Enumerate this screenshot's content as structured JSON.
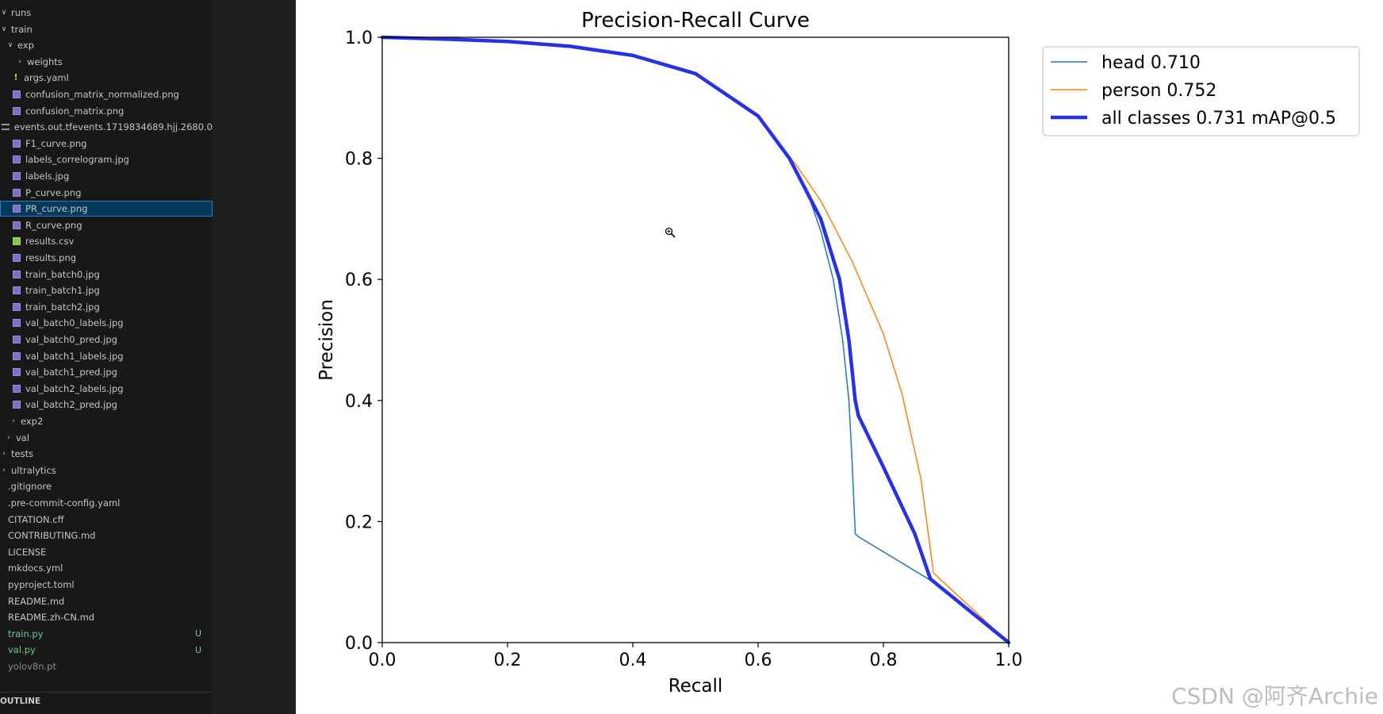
{
  "explorer": {
    "items": [
      {
        "label": "runs",
        "chev": "∨",
        "icon": "",
        "indent": 0,
        "state": ""
      },
      {
        "label": "train",
        "chev": "∨",
        "icon": "",
        "indent": 0,
        "state": ""
      },
      {
        "label": "exp",
        "chev": "∨",
        "icon": "",
        "indent": 8,
        "state": ""
      },
      {
        "label": "weights",
        "chev": "›",
        "icon": "",
        "indent": 20,
        "state": ""
      },
      {
        "label": "args.yaml",
        "chev": "",
        "icon": "yaml",
        "indent": 16,
        "state": ""
      },
      {
        "label": "confusion_matrix_normalized.png",
        "chev": "",
        "icon": "img",
        "indent": 16,
        "state": ""
      },
      {
        "label": "confusion_matrix.png",
        "chev": "",
        "icon": "img",
        "indent": 16,
        "state": ""
      },
      {
        "label": "events.out.tfevents.1719834689.hjj.2680.0",
        "chev": "",
        "icon": "txt",
        "indent": 16,
        "state": ""
      },
      {
        "label": "F1_curve.png",
        "chev": "",
        "icon": "img",
        "indent": 16,
        "state": ""
      },
      {
        "label": "labels_correlogram.jpg",
        "chev": "",
        "icon": "img",
        "indent": 16,
        "state": ""
      },
      {
        "label": "labels.jpg",
        "chev": "",
        "icon": "img",
        "indent": 16,
        "state": ""
      },
      {
        "label": "P_curve.png",
        "chev": "",
        "icon": "img",
        "indent": 16,
        "state": ""
      },
      {
        "label": "PR_curve.png",
        "chev": "",
        "icon": "img",
        "indent": 16,
        "state": "selected"
      },
      {
        "label": "R_curve.png",
        "chev": "",
        "icon": "img",
        "indent": 16,
        "state": ""
      },
      {
        "label": "results.csv",
        "chev": "",
        "icon": "csv",
        "indent": 16,
        "state": ""
      },
      {
        "label": "results.png",
        "chev": "",
        "icon": "img",
        "indent": 16,
        "state": ""
      },
      {
        "label": "train_batch0.jpg",
        "chev": "",
        "icon": "img",
        "indent": 16,
        "state": ""
      },
      {
        "label": "train_batch1.jpg",
        "chev": "",
        "icon": "img",
        "indent": 16,
        "state": ""
      },
      {
        "label": "train_batch2.jpg",
        "chev": "",
        "icon": "img",
        "indent": 16,
        "state": ""
      },
      {
        "label": "val_batch0_labels.jpg",
        "chev": "",
        "icon": "img",
        "indent": 16,
        "state": ""
      },
      {
        "label": "val_batch0_pred.jpg",
        "chev": "",
        "icon": "img",
        "indent": 16,
        "state": ""
      },
      {
        "label": "val_batch1_labels.jpg",
        "chev": "",
        "icon": "img",
        "indent": 16,
        "state": ""
      },
      {
        "label": "val_batch1_pred.jpg",
        "chev": "",
        "icon": "img",
        "indent": 16,
        "state": ""
      },
      {
        "label": "val_batch2_labels.jpg",
        "chev": "",
        "icon": "img",
        "indent": 16,
        "state": ""
      },
      {
        "label": "val_batch2_pred.jpg",
        "chev": "",
        "icon": "img",
        "indent": 16,
        "state": ""
      },
      {
        "label": "exp2",
        "chev": "›",
        "icon": "",
        "indent": 12,
        "state": ""
      },
      {
        "label": "val",
        "chev": "›",
        "icon": "",
        "indent": 6,
        "state": ""
      },
      {
        "label": "tests",
        "chev": "›",
        "icon": "",
        "indent": 0,
        "state": ""
      },
      {
        "label": "ultralytics",
        "chev": "›",
        "icon": "",
        "indent": 0,
        "state": ""
      },
      {
        "label": ".gitignore",
        "chev": "",
        "icon": "",
        "indent": 10,
        "state": ""
      },
      {
        "label": ".pre-commit-config.yaml",
        "chev": "",
        "icon": "",
        "indent": 10,
        "state": ""
      },
      {
        "label": "CITATION.cff",
        "chev": "",
        "icon": "",
        "indent": 10,
        "state": ""
      },
      {
        "label": "CONTRIBUTING.md",
        "chev": "",
        "icon": "",
        "indent": 10,
        "state": ""
      },
      {
        "label": "LICENSE",
        "chev": "",
        "icon": "",
        "indent": 10,
        "state": ""
      },
      {
        "label": "mkdocs.yml",
        "chev": "",
        "icon": "",
        "indent": 10,
        "state": ""
      },
      {
        "label": "pyproject.toml",
        "chev": "",
        "icon": "",
        "indent": 10,
        "state": ""
      },
      {
        "label": "README.md",
        "chev": "",
        "icon": "",
        "indent": 10,
        "state": ""
      },
      {
        "label": "README.zh-CN.md",
        "chev": "",
        "icon": "",
        "indent": 10,
        "state": ""
      },
      {
        "label": "train.py",
        "chev": "",
        "icon": "",
        "indent": 10,
        "state": "green",
        "badge": "U"
      },
      {
        "label": "val.py",
        "chev": "",
        "icon": "",
        "indent": 10,
        "state": "green",
        "badge": "U"
      },
      {
        "label": "yolov8n.pt",
        "chev": "",
        "icon": "",
        "indent": 10,
        "state": "dim"
      }
    ],
    "outline_label": "OUTLINE"
  },
  "chart_data": {
    "type": "line",
    "title": "Precision-Recall Curve",
    "xlabel": "Recall",
    "ylabel": "Precision",
    "xlim": [
      0,
      1
    ],
    "ylim": [
      0,
      1
    ],
    "xticks": [
      "0.0",
      "0.2",
      "0.4",
      "0.6",
      "0.8",
      "1.0"
    ],
    "yticks": [
      "0.0",
      "0.2",
      "0.4",
      "0.6",
      "0.8",
      "1.0"
    ],
    "legend_position": "outside-right-top",
    "series": [
      {
        "name": "head 0.710",
        "color": "#1f77b4",
        "width": 1.5,
        "points": [
          [
            0,
            1.0
          ],
          [
            0.1,
            0.997
          ],
          [
            0.2,
            0.993
          ],
          [
            0.3,
            0.985
          ],
          [
            0.4,
            0.97
          ],
          [
            0.5,
            0.94
          ],
          [
            0.6,
            0.87
          ],
          [
            0.65,
            0.8
          ],
          [
            0.68,
            0.74
          ],
          [
            0.7,
            0.68
          ],
          [
            0.72,
            0.6
          ],
          [
            0.735,
            0.5
          ],
          [
            0.745,
            0.4
          ],
          [
            0.75,
            0.3
          ],
          [
            0.755,
            0.18
          ],
          [
            0.76,
            0.175
          ],
          [
            0.88,
            0.1
          ],
          [
            1.0,
            0.0
          ]
        ]
      },
      {
        "name": "person 0.752",
        "color": "#ff7f0e",
        "width": 1.5,
        "points": [
          [
            0,
            1.0
          ],
          [
            0.1,
            0.997
          ],
          [
            0.2,
            0.993
          ],
          [
            0.3,
            0.985
          ],
          [
            0.4,
            0.97
          ],
          [
            0.5,
            0.94
          ],
          [
            0.6,
            0.87
          ],
          [
            0.66,
            0.79
          ],
          [
            0.7,
            0.73
          ],
          [
            0.75,
            0.63
          ],
          [
            0.8,
            0.51
          ],
          [
            0.83,
            0.41
          ],
          [
            0.86,
            0.27
          ],
          [
            0.88,
            0.115
          ],
          [
            1.0,
            0.0
          ]
        ]
      },
      {
        "name": "all classes 0.731 mAP@0.5",
        "color": "#2632e6",
        "width": 4.5,
        "points": [
          [
            0,
            1.0
          ],
          [
            0.1,
            0.997
          ],
          [
            0.2,
            0.993
          ],
          [
            0.3,
            0.985
          ],
          [
            0.4,
            0.97
          ],
          [
            0.5,
            0.94
          ],
          [
            0.6,
            0.87
          ],
          [
            0.65,
            0.8
          ],
          [
            0.7,
            0.7
          ],
          [
            0.73,
            0.6
          ],
          [
            0.745,
            0.5
          ],
          [
            0.755,
            0.4
          ],
          [
            0.76,
            0.375
          ],
          [
            0.8,
            0.29
          ],
          [
            0.85,
            0.18
          ],
          [
            0.875,
            0.105
          ],
          [
            1.0,
            0.0
          ]
        ]
      }
    ]
  },
  "watermark": "CSDN @阿齐Archie"
}
